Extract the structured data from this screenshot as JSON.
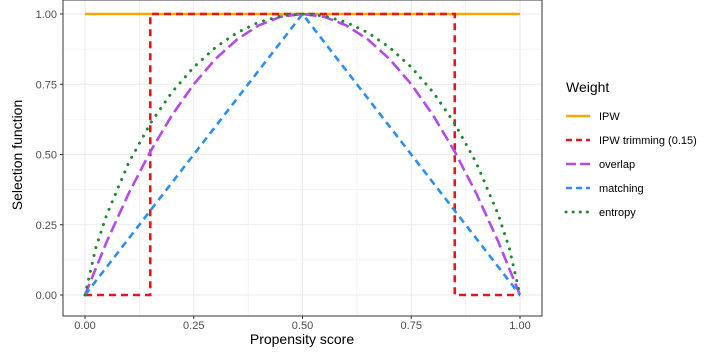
{
  "chart_data": {
    "type": "line",
    "xlabel": "Propensity score",
    "ylabel": "Selection function",
    "xlim": [
      0,
      1
    ],
    "ylim": [
      0,
      1
    ],
    "x_ticks": [
      0,
      0.25,
      0.5,
      0.75,
      1
    ],
    "y_ticks": [
      0,
      0.25,
      0.5,
      0.75,
      1
    ],
    "x_tick_labels": [
      "0.00",
      "0.25",
      "0.50",
      "0.75",
      "1.00"
    ],
    "y_tick_labels": [
      "0.00",
      "0.25",
      "0.50",
      "0.75",
      "1.00"
    ],
    "grid": true,
    "legend": {
      "title": "Weight",
      "position": "right"
    },
    "series": [
      {
        "name": "IPW",
        "color": "#F5A800",
        "style": "solid",
        "x": [
          0,
          1
        ],
        "y": [
          1,
          1
        ]
      },
      {
        "name": "IPW trimming (0.15)",
        "color": "#E8141A",
        "style": "dashed",
        "x": [
          0,
          0.15,
          0.15,
          0.85,
          0.85,
          1
        ],
        "y": [
          0,
          0,
          1,
          1,
          0,
          0
        ]
      },
      {
        "name": "overlap",
        "color": "#B44BE8",
        "style": "longdash",
        "x": [
          0,
          0.05,
          0.1,
          0.15,
          0.2,
          0.25,
          0.3,
          0.35,
          0.4,
          0.45,
          0.5,
          0.55,
          0.6,
          0.65,
          0.7,
          0.75,
          0.8,
          0.85,
          0.9,
          0.95,
          1
        ],
        "y": [
          0,
          0.19,
          0.36,
          0.51,
          0.64,
          0.75,
          0.84,
          0.91,
          0.96,
          0.99,
          1,
          0.99,
          0.96,
          0.91,
          0.84,
          0.75,
          0.64,
          0.51,
          0.36,
          0.19,
          0
        ]
      },
      {
        "name": "matching",
        "color": "#2B8FF0",
        "style": "dashed",
        "x": [
          0,
          0.5,
          1
        ],
        "y": [
          0,
          1,
          0
        ]
      },
      {
        "name": "entropy",
        "color": "#1E8A2E",
        "style": "dotted",
        "x": [
          0,
          0.025,
          0.05,
          0.1,
          0.15,
          0.2,
          0.25,
          0.3,
          0.35,
          0.4,
          0.45,
          0.5,
          0.55,
          0.6,
          0.65,
          0.7,
          0.75,
          0.8,
          0.85,
          0.9,
          0.95,
          0.975,
          1
        ],
        "y": [
          0,
          0.169,
          0.286,
          0.469,
          0.61,
          0.722,
          0.811,
          0.881,
          0.934,
          0.971,
          0.993,
          1,
          0.993,
          0.971,
          0.934,
          0.881,
          0.811,
          0.722,
          0.61,
          0.469,
          0.286,
          0.169,
          0
        ]
      }
    ]
  }
}
